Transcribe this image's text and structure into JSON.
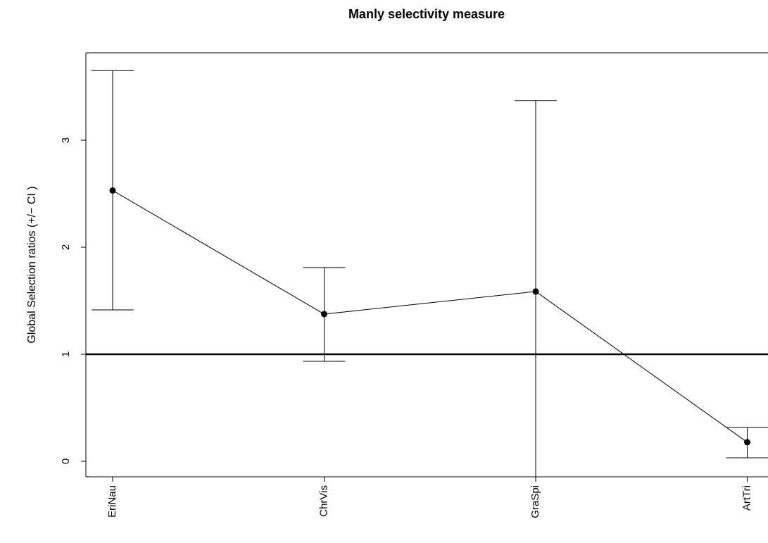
{
  "chart_data": {
    "type": "errorbar-line",
    "title": "Manly selectivity measure",
    "y_label": "Global Selection ratios (+/− CI )",
    "categories": [
      "EriNau",
      "ChrVis",
      "GraSpi",
      "ArtTri"
    ],
    "series": [
      {
        "color": "#000000",
        "values": [
          2.53,
          1.375,
          1.586,
          0.178
        ],
        "lower": [
          1.414,
          0.934,
          -0.2,
          0.033
        ],
        "upper": [
          3.65,
          1.81,
          3.37,
          0.316
        ]
      }
    ],
    "reference_line": 1,
    "ylim": [
      -0.145,
      3.816
    ],
    "yticks": [
      0,
      1,
      2,
      3
    ],
    "grid": false
  }
}
